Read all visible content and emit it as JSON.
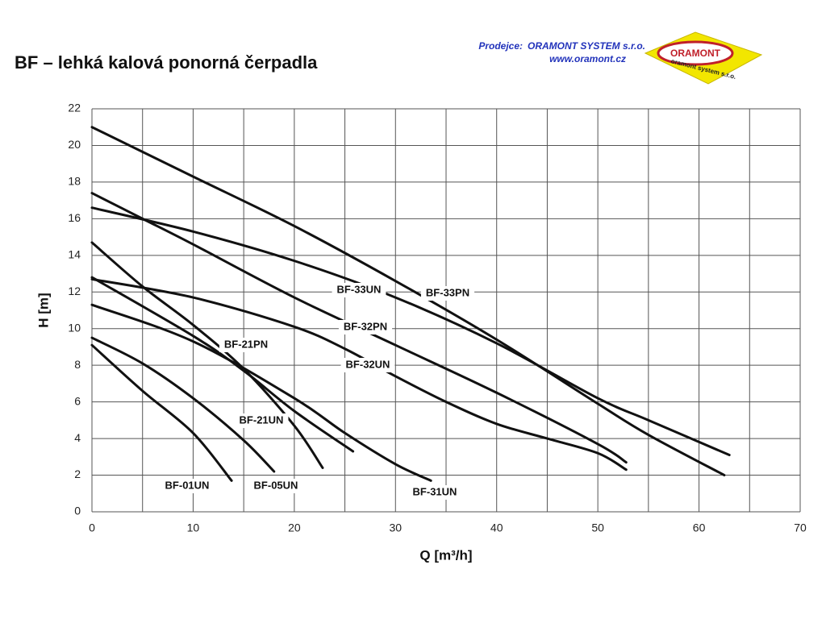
{
  "chart_data": {
    "type": "line",
    "title": "BF – lehká kalová ponorná čerpadla",
    "dealer_label": "Prodejce:",
    "dealer_name": "ORAMONT SYSTEM s.r.o.",
    "dealer_url": "www.oramont.cz",
    "logo_text": "ORAMONT",
    "logo_subtext": "oramont system s.r.o.",
    "x_label": "Q [m³/h]",
    "y_label": "H [m]",
    "xlim": [
      0,
      70
    ],
    "ylim": [
      0,
      22
    ],
    "xticks": [
      0,
      10,
      20,
      30,
      40,
      50,
      60,
      70
    ],
    "xgrid": [
      0,
      5,
      10,
      15,
      20,
      25,
      30,
      35,
      40,
      45,
      50,
      55,
      60,
      65,
      70
    ],
    "yticks": [
      0,
      2,
      4,
      6,
      8,
      10,
      12,
      14,
      16,
      18,
      20,
      22
    ],
    "grid": true,
    "series": [
      {
        "name": "BF-33PN",
        "color": "#111111",
        "x": [
          0,
          10,
          20,
          30,
          40,
          50,
          55,
          62.5
        ],
        "values": [
          21,
          18.3,
          15.6,
          12.6,
          9.4,
          5.9,
          4.2,
          2.0
        ]
      },
      {
        "name": "BF-33UN",
        "color": "#111111",
        "x": [
          0,
          10,
          20,
          30,
          40,
          50,
          55,
          63
        ],
        "values": [
          16.6,
          15.3,
          13.7,
          11.7,
          9.2,
          6.2,
          5.0,
          3.1
        ]
      },
      {
        "name": "BF-32PN",
        "color": "#111111",
        "x": [
          0,
          5,
          10,
          20,
          30,
          40,
          50,
          52.8
        ],
        "values": [
          17.4,
          16,
          14.6,
          11.7,
          9.1,
          6.5,
          3.7,
          2.7
        ]
      },
      {
        "name": "BF-32UN",
        "color": "#111111",
        "x": [
          0,
          10,
          20,
          25,
          30,
          35,
          40,
          45,
          50,
          52.8
        ],
        "values": [
          12.7,
          11.7,
          10.1,
          8.9,
          7.4,
          6,
          4.8,
          4,
          3.2,
          2.3
        ]
      },
      {
        "name": "BF-21PN",
        "color": "#111111",
        "x": [
          0,
          5,
          10,
          15,
          20,
          22.8
        ],
        "values": [
          14.7,
          12.3,
          10.2,
          7.8,
          4.7,
          2.4
        ]
      },
      {
        "name": "BF-21UN",
        "color": "#111111",
        "x": [
          0,
          10,
          15,
          20,
          25.8
        ],
        "values": [
          12.8,
          9.6,
          7.7,
          5.5,
          3.3
        ]
      },
      {
        "name": "BF-31UN",
        "color": "#111111",
        "x": [
          0,
          10,
          20,
          25,
          30,
          33.5
        ],
        "values": [
          11.3,
          9.3,
          6.2,
          4.3,
          2.6,
          1.7
        ]
      },
      {
        "name": "BF-05UN",
        "color": "#111111",
        "x": [
          0,
          5,
          10,
          15,
          18
        ],
        "values": [
          9.5,
          8.1,
          6.2,
          3.9,
          2.2
        ]
      },
      {
        "name": "BF-01UN",
        "color": "#111111",
        "x": [
          0,
          5,
          10,
          13.8
        ],
        "values": [
          9.1,
          6.6,
          4.3,
          1.7
        ]
      }
    ]
  }
}
